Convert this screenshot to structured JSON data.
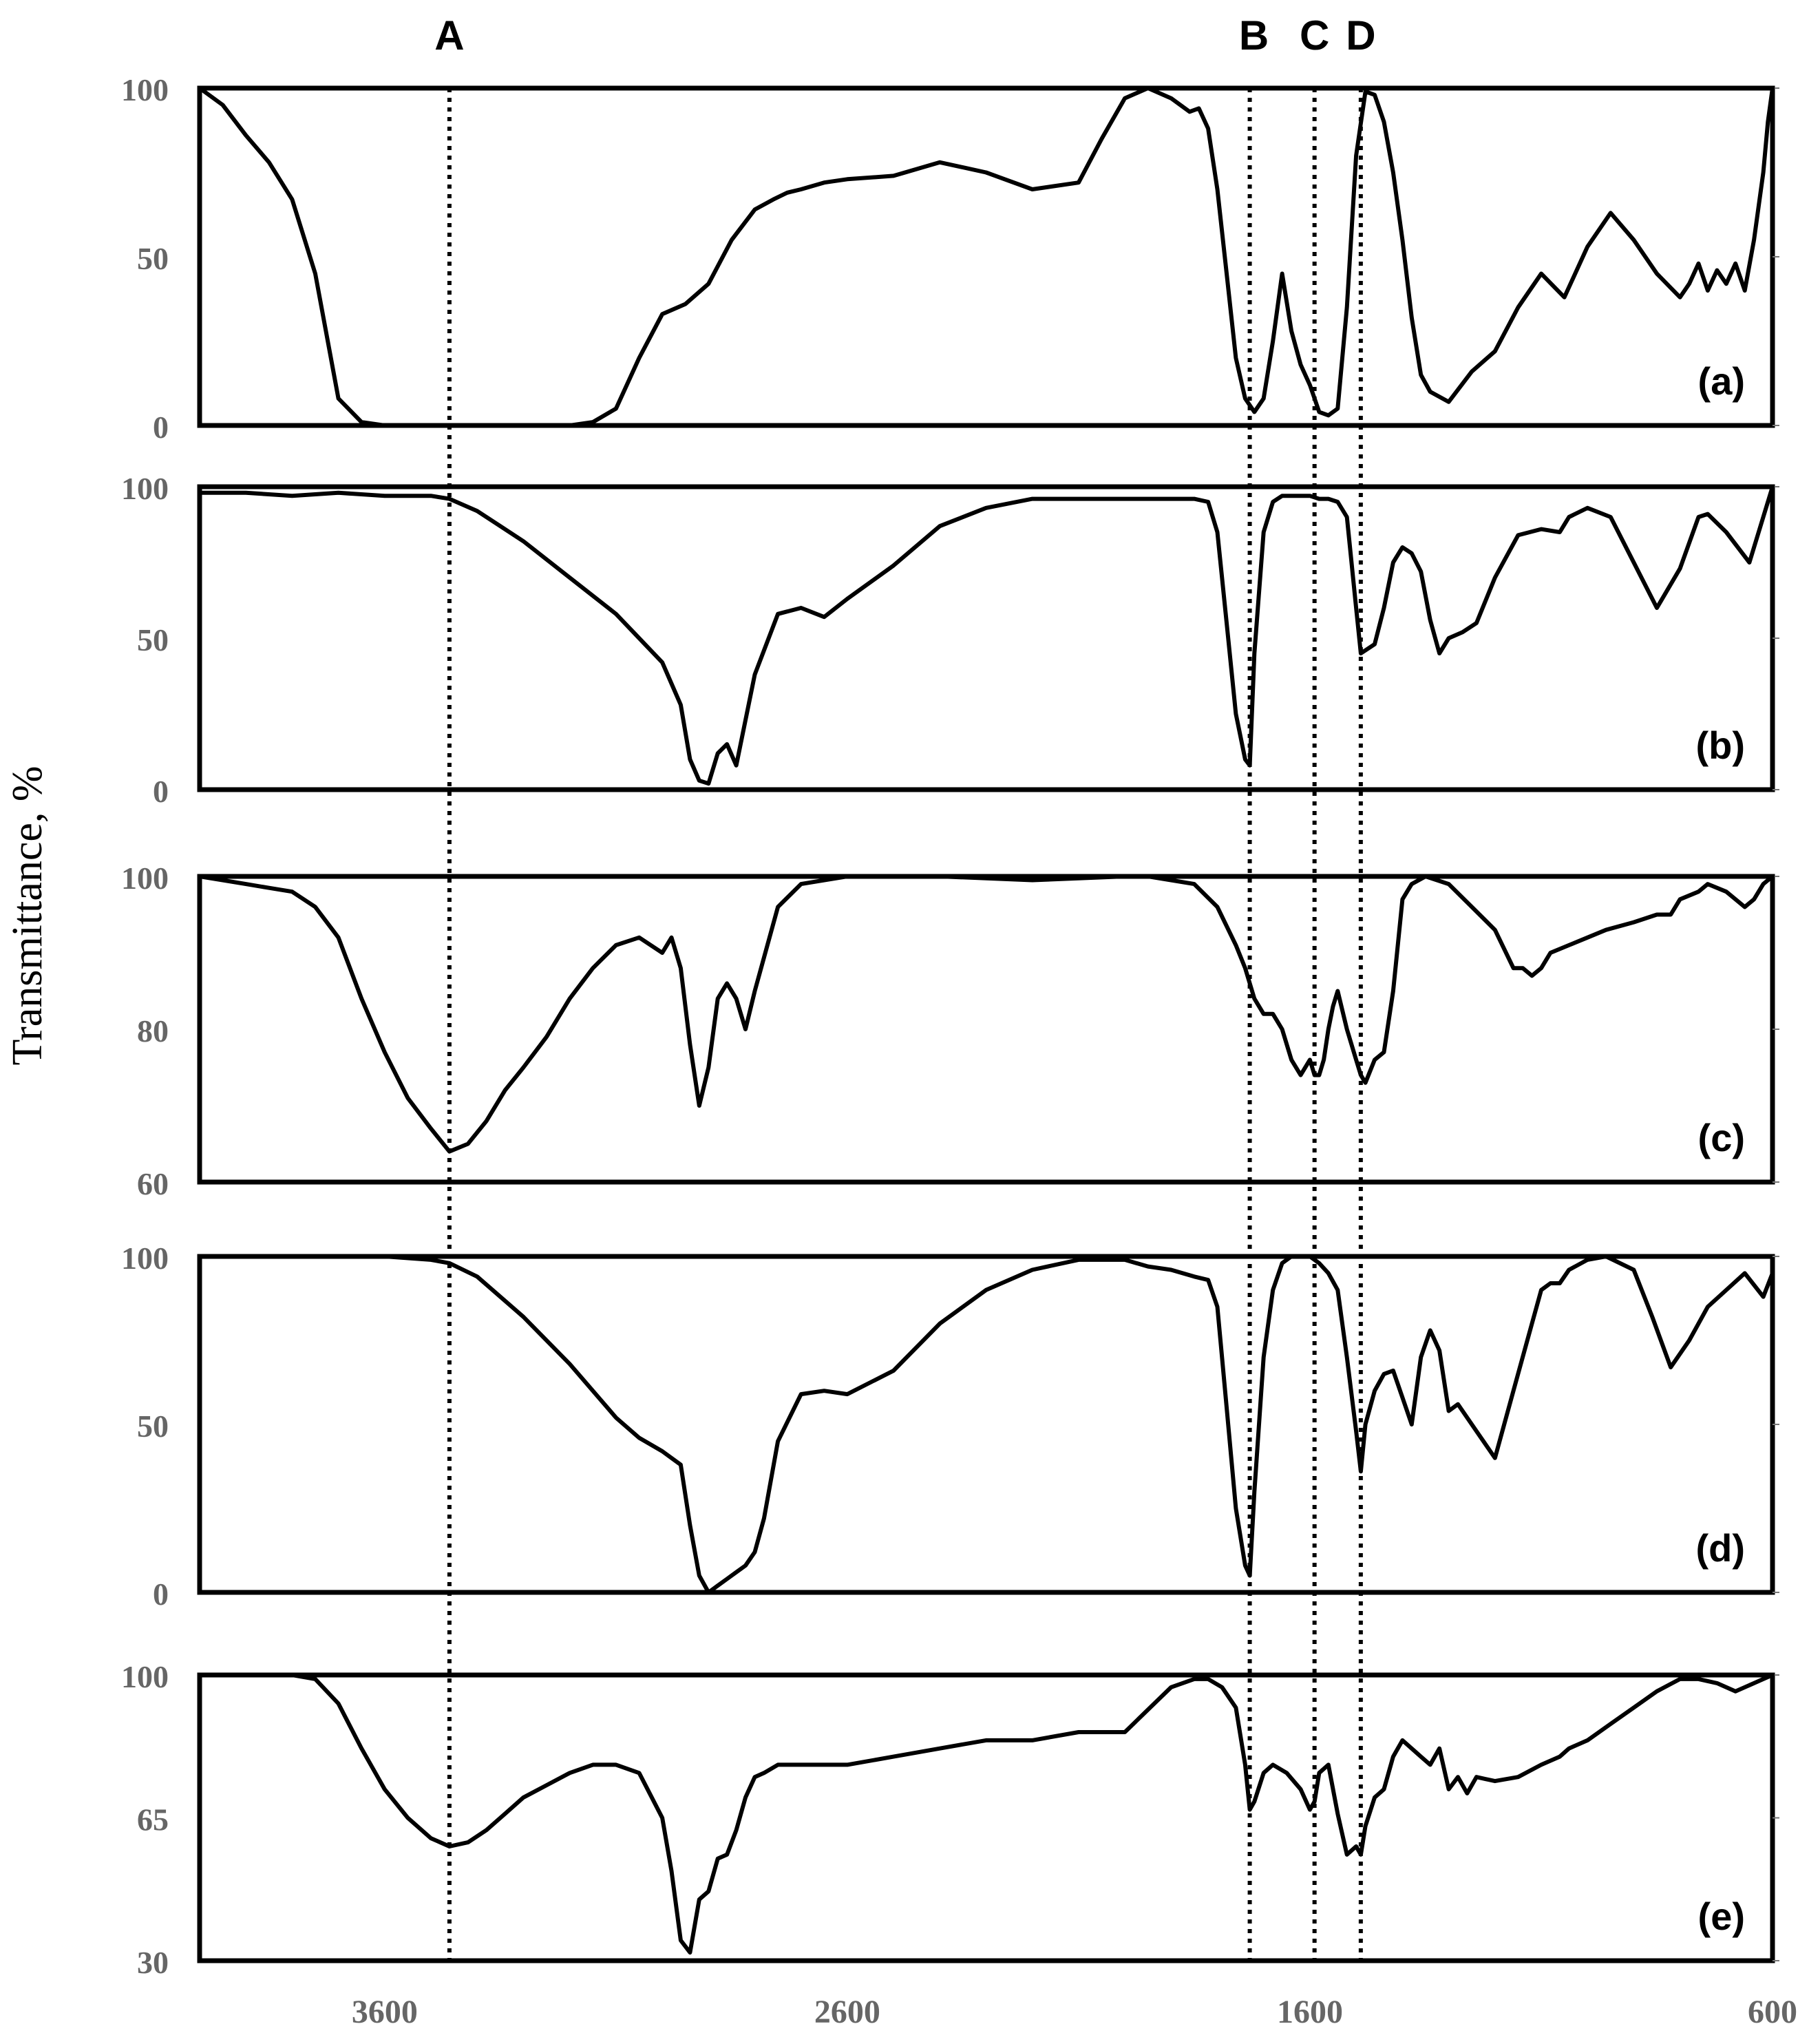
{
  "chart_data": {
    "type": "line",
    "ylabel": "Transmittance, %",
    "x_reversed": true,
    "xlim": [
      4000,
      600
    ],
    "xticks": [
      3600,
      2600,
      1600,
      600
    ],
    "markers": [
      {
        "label": "A",
        "x": 3460
      },
      {
        "label": "B",
        "x": 1730
      },
      {
        "label": "C",
        "x": 1590
      },
      {
        "label": "D",
        "x": 1490
      }
    ],
    "panels": [
      {
        "name": "(a)",
        "ylim": [
          0,
          100
        ],
        "yticks": [
          0,
          50,
          100
        ],
        "x": [
          4000,
          3950,
          3900,
          3850,
          3800,
          3750,
          3700,
          3650,
          3600,
          3550,
          3500,
          3460,
          3400,
          3300,
          3200,
          3150,
          3100,
          3050,
          3000,
          2950,
          2900,
          2850,
          2800,
          2760,
          2730,
          2700,
          2650,
          2600,
          2500,
          2400,
          2300,
          2200,
          2100,
          2050,
          2000,
          1950,
          1900,
          1860,
          1840,
          1820,
          1800,
          1780,
          1760,
          1740,
          1720,
          1700,
          1680,
          1660,
          1640,
          1620,
          1600,
          1590,
          1580,
          1560,
          1540,
          1520,
          1500,
          1480,
          1460,
          1440,
          1420,
          1400,
          1380,
          1360,
          1340,
          1300,
          1250,
          1200,
          1150,
          1100,
          1050,
          1000,
          950,
          900,
          850,
          800,
          780,
          760,
          740,
          720,
          700,
          680,
          660,
          640,
          620,
          610,
          600
        ],
        "y": [
          100,
          95,
          86,
          78,
          67,
          45,
          8,
          1,
          0,
          0,
          0,
          0,
          0,
          0,
          0,
          1,
          5,
          20,
          33,
          36,
          42,
          55,
          64,
          67,
          69,
          70,
          72,
          73,
          74,
          78,
          75,
          70,
          72,
          85,
          97,
          100,
          97,
          93,
          94,
          88,
          70,
          45,
          20,
          8,
          4,
          8,
          25,
          45,
          28,
          18,
          12,
          8,
          4,
          3,
          5,
          35,
          80,
          99,
          98,
          90,
          75,
          55,
          32,
          15,
          10,
          7,
          16,
          22,
          35,
          45,
          38,
          53,
          63,
          55,
          45,
          38,
          42,
          48,
          40,
          46,
          42,
          48,
          40,
          55,
          75,
          90,
          100
        ]
      },
      {
        "name": "(b)",
        "ylim": [
          0,
          100
        ],
        "yticks": [
          0,
          50,
          100
        ],
        "x": [
          4000,
          3900,
          3800,
          3700,
          3600,
          3500,
          3460,
          3400,
          3300,
          3200,
          3100,
          3050,
          3000,
          2980,
          2960,
          2940,
          2920,
          2900,
          2880,
          2860,
          2840,
          2800,
          2750,
          2700,
          2650,
          2600,
          2500,
          2400,
          2300,
          2200,
          2100,
          2000,
          1950,
          1900,
          1850,
          1820,
          1800,
          1780,
          1760,
          1740,
          1730,
          1720,
          1700,
          1680,
          1660,
          1640,
          1620,
          1600,
          1580,
          1560,
          1540,
          1520,
          1500,
          1490,
          1480,
          1460,
          1440,
          1420,
          1400,
          1380,
          1360,
          1340,
          1320,
          1300,
          1270,
          1240,
          1200,
          1150,
          1100,
          1060,
          1040,
          1000,
          950,
          900,
          850,
          800,
          760,
          740,
          700,
          650,
          600
        ],
        "y": [
          98,
          98,
          97,
          98,
          97,
          97,
          96,
          92,
          82,
          70,
          58,
          50,
          42,
          35,
          28,
          10,
          3,
          2,
          12,
          15,
          8,
          38,
          58,
          60,
          57,
          63,
          74,
          87,
          93,
          96,
          96,
          96,
          96,
          96,
          96,
          95,
          85,
          55,
          25,
          10,
          8,
          45,
          85,
          95,
          97,
          97,
          97,
          97,
          96,
          96,
          95,
          90,
          60,
          45,
          46,
          48,
          60,
          75,
          80,
          78,
          72,
          56,
          45,
          50,
          52,
          55,
          70,
          84,
          86,
          85,
          90,
          93,
          90,
          75,
          60,
          73,
          90,
          91,
          85,
          75,
          100
        ]
      },
      {
        "name": "(c)",
        "ylim": [
          60,
          100
        ],
        "yticks": [
          60,
          80,
          100
        ],
        "x": [
          4000,
          3900,
          3850,
          3800,
          3750,
          3700,
          3650,
          3600,
          3550,
          3500,
          3460,
          3420,
          3380,
          3340,
          3300,
          3250,
          3200,
          3150,
          3100,
          3050,
          3000,
          2980,
          2960,
          2940,
          2920,
          2900,
          2880,
          2860,
          2840,
          2820,
          2800,
          2750,
          2700,
          2600,
          2400,
          2200,
          2000,
          1950,
          1900,
          1850,
          1800,
          1760,
          1740,
          1720,
          1700,
          1680,
          1660,
          1640,
          1620,
          1600,
          1590,
          1580,
          1570,
          1560,
          1550,
          1540,
          1520,
          1500,
          1490,
          1480,
          1460,
          1440,
          1420,
          1400,
          1380,
          1350,
          1300,
          1250,
          1200,
          1160,
          1140,
          1120,
          1100,
          1080,
          1040,
          1000,
          960,
          900,
          850,
          820,
          800,
          760,
          740,
          700,
          660,
          640,
          620,
          600
        ],
        "y": [
          100,
          99,
          98.5,
          98,
          96,
          92,
          84,
          77,
          71,
          67,
          64,
          65,
          68,
          72,
          75,
          79,
          84,
          88,
          91,
          92,
          90,
          92,
          88,
          78,
          70,
          75,
          84,
          86,
          84,
          80,
          85,
          96,
          99,
          100,
          100,
          99.5,
          100,
          100,
          99.5,
          99,
          96,
          91,
          88,
          84,
          82,
          82,
          80,
          76,
          74,
          76,
          74,
          74,
          76,
          80,
          83,
          85,
          80,
          76,
          74,
          73,
          76,
          77,
          85,
          97,
          99,
          100,
          99,
          96,
          93,
          88,
          88,
          87,
          88,
          90,
          91,
          92,
          93,
          94,
          95,
          95,
          97,
          98,
          99,
          98,
          96,
          97,
          99,
          100
        ]
      },
      {
        "name": "(d)",
        "ylim": [
          0,
          100
        ],
        "yticks": [
          0,
          50,
          100
        ],
        "x": [
          4000,
          3900,
          3800,
          3700,
          3600,
          3500,
          3460,
          3400,
          3300,
          3200,
          3100,
          3050,
          3000,
          2980,
          2960,
          2940,
          2920,
          2900,
          2880,
          2860,
          2840,
          2820,
          2800,
          2780,
          2750,
          2700,
          2650,
          2600,
          2500,
          2400,
          2300,
          2200,
          2100,
          2000,
          1950,
          1900,
          1850,
          1820,
          1800,
          1780,
          1760,
          1740,
          1730,
          1720,
          1700,
          1680,
          1660,
          1640,
          1620,
          1600,
          1580,
          1560,
          1540,
          1520,
          1500,
          1490,
          1480,
          1460,
          1440,
          1420,
          1400,
          1380,
          1360,
          1340,
          1320,
          1300,
          1280,
          1260,
          1240,
          1200,
          1160,
          1120,
          1100,
          1080,
          1060,
          1040,
          1000,
          960,
          900,
          860,
          820,
          780,
          740,
          700,
          660,
          620,
          600
        ],
        "y": [
          100,
          100,
          100,
          100,
          100,
          99,
          98,
          94,
          82,
          68,
          52,
          46,
          42,
          40,
          38,
          20,
          5,
          0,
          2,
          4,
          6,
          8,
          12,
          22,
          45,
          59,
          60,
          59,
          66,
          80,
          90,
          96,
          99,
          99,
          97,
          96,
          94,
          93,
          85,
          55,
          25,
          8,
          5,
          30,
          70,
          90,
          98,
          100,
          100,
          100,
          98,
          95,
          90,
          70,
          48,
          36,
          50,
          60,
          65,
          66,
          58,
          50,
          70,
          78,
          72,
          54,
          56,
          52,
          48,
          40,
          60,
          80,
          90,
          92,
          92,
          96,
          99,
          100,
          96,
          82,
          67,
          75,
          85,
          90,
          95,
          88,
          95
        ]
      },
      {
        "name": "(e)",
        "ylim": [
          30,
          100
        ],
        "yticks": [
          30,
          65,
          100
        ],
        "x": [
          4000,
          3900,
          3800,
          3750,
          3700,
          3650,
          3600,
          3550,
          3500,
          3460,
          3420,
          3380,
          3340,
          3300,
          3250,
          3200,
          3150,
          3100,
          3050,
          3000,
          2980,
          2960,
          2940,
          2920,
          2900,
          2880,
          2860,
          2840,
          2820,
          2800,
          2780,
          2750,
          2700,
          2600,
          2500,
          2400,
          2300,
          2200,
          2100,
          2000,
          1900,
          1850,
          1820,
          1790,
          1760,
          1740,
          1730,
          1720,
          1700,
          1680,
          1650,
          1620,
          1600,
          1590,
          1580,
          1560,
          1540,
          1520,
          1500,
          1490,
          1480,
          1460,
          1440,
          1420,
          1400,
          1380,
          1360,
          1340,
          1320,
          1300,
          1280,
          1260,
          1240,
          1200,
          1150,
          1100,
          1060,
          1040,
          1000,
          950,
          900,
          850,
          800,
          760,
          720,
          680,
          640,
          620,
          600
        ],
        "y": [
          100,
          100,
          100,
          99,
          93,
          82,
          72,
          65,
          60,
          58,
          59,
          62,
          66,
          70,
          73,
          76,
          78,
          78,
          76,
          65,
          52,
          35,
          32,
          45,
          47,
          55,
          56,
          62,
          70,
          75,
          76,
          78,
          78,
          78,
          80,
          82,
          84,
          84,
          86,
          86,
          97,
          99,
          99,
          97,
          92,
          78,
          67,
          69,
          76,
          78,
          76,
          72,
          67,
          69,
          76,
          78,
          66,
          56,
          58,
          56,
          63,
          70,
          72,
          80,
          84,
          82,
          80,
          78,
          82,
          72,
          75,
          71,
          75,
          74,
          75,
          78,
          80,
          82,
          84,
          88,
          92,
          96,
          99,
          99,
          98,
          96,
          98,
          99,
          100
        ]
      }
    ]
  }
}
